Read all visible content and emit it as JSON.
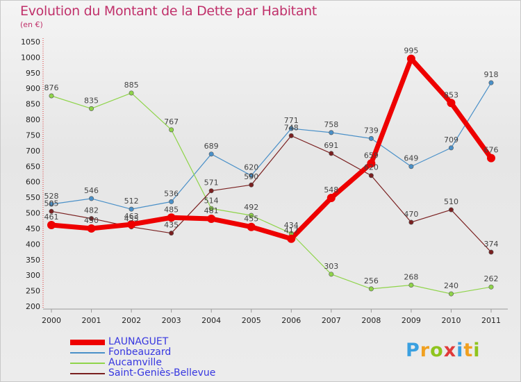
{
  "header": {
    "title": "Evolution du Montant de la Dette par Habitant",
    "subtitle": "(en €)"
  },
  "brand": {
    "letters": [
      "P",
      "r",
      "o",
      "x",
      "i",
      "t",
      "i"
    ],
    "colors": [
      "#3aa0e0",
      "#f0a020",
      "#8fc41e",
      "#e03a3a",
      "#3aa0e0",
      "#f0a020",
      "#8fc41e"
    ]
  },
  "chart_data": {
    "type": "line",
    "title": "Evolution du Montant de la Dette par Habitant",
    "subtitle": "(en €)",
    "xlabel": "",
    "ylabel": "",
    "x": [
      "2000",
      "2001",
      "2002",
      "2003",
      "2004",
      "2005",
      "2006",
      "2007",
      "2008",
      "2009",
      "2010",
      "2011"
    ],
    "ylim": [
      200,
      1050
    ],
    "yticks": [
      200,
      250,
      300,
      350,
      400,
      450,
      500,
      550,
      600,
      650,
      700,
      750,
      800,
      850,
      900,
      950,
      1000,
      1050
    ],
    "grid": false,
    "legend_position": "bottom-left",
    "series": [
      {
        "name": "LAUNAGUET",
        "color": "#ee0000",
        "width": 7,
        "marker": 6,
        "values": [
          461,
          450,
          463,
          485,
          481,
          455,
          417,
          548,
          659,
          995,
          853,
          676
        ],
        "labels": [
          "461",
          "450",
          "463",
          "485",
          "481",
          "455",
          "417",
          "548",
          "659",
          "995",
          "853",
          "676"
        ]
      },
      {
        "name": "Fonbeauzard",
        "color": "#4a90c8",
        "width": 1.2,
        "marker": 3.2,
        "values": [
          528,
          546,
          512,
          536,
          689,
          620,
          771,
          758,
          739,
          649,
          709,
          918
        ],
        "labels": [
          "528",
          "546",
          "512",
          "536",
          "689",
          "620",
          "771",
          "758",
          "739",
          "649",
          "709",
          "918"
        ]
      },
      {
        "name": "Aucamville",
        "color": "#8fd44a",
        "width": 1.2,
        "marker": 3.2,
        "values": [
          876,
          835,
          885,
          767,
          514,
          492,
          434,
          303,
          256,
          268,
          240,
          262
        ],
        "labels": [
          "876",
          "835",
          "885",
          "767",
          "514",
          "492",
          "434",
          "303",
          "256",
          "268",
          "240",
          "262"
        ]
      },
      {
        "name": "Saint-Geniès-Bellevue",
        "color": "#7a2020",
        "width": 1.2,
        "marker": 3.2,
        "values": [
          505,
          482,
          455,
          435,
          571,
          590,
          748,
          691,
          620,
          470,
          510,
          374
        ],
        "labels": [
          "505",
          "482",
          "455",
          "435",
          "571",
          "590",
          "748",
          "691",
          "620",
          "470",
          "510",
          "374"
        ]
      }
    ]
  }
}
